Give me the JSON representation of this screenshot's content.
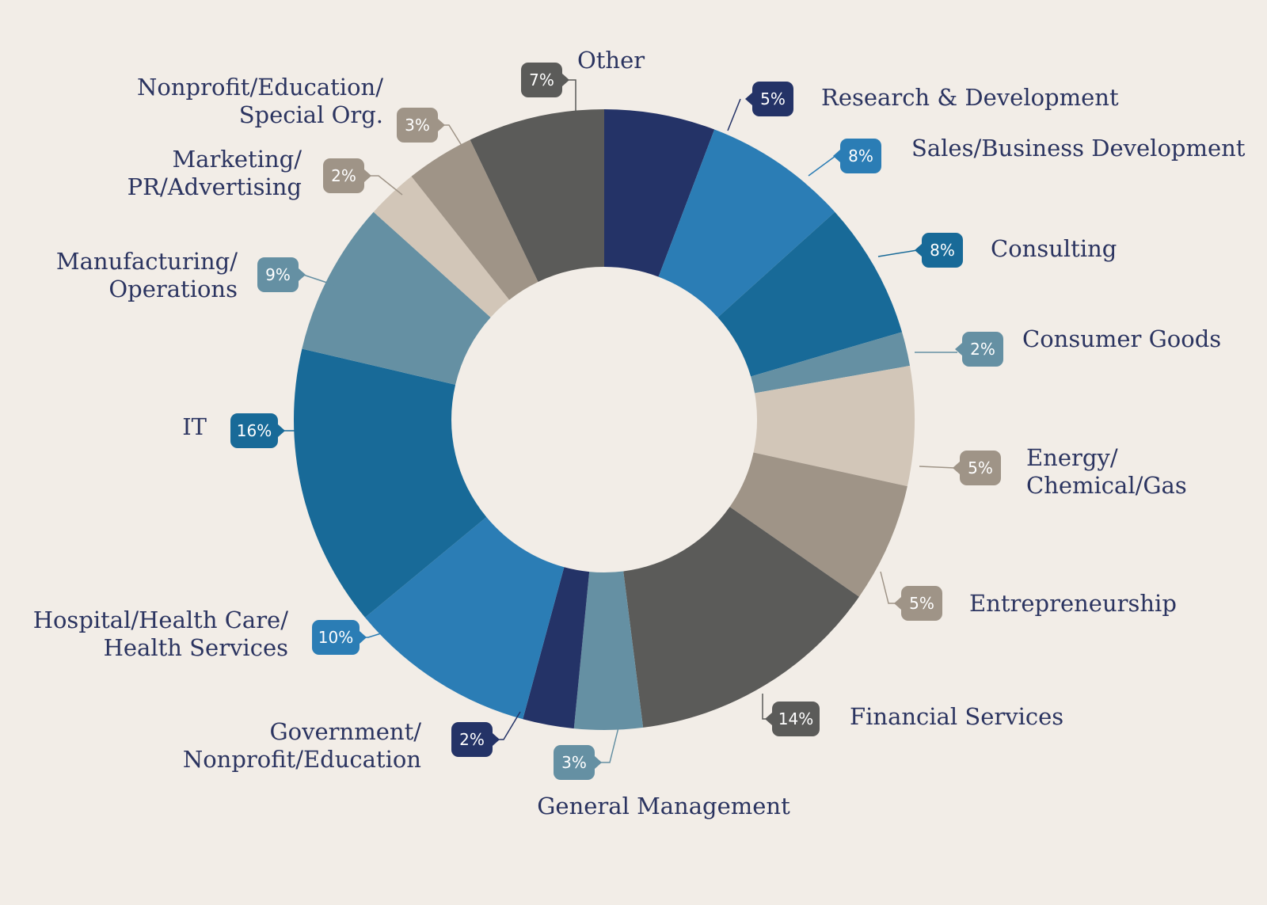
{
  "chart_data": {
    "type": "pie",
    "title": "",
    "categories": [
      "Research & Development",
      "Sales/Business Development",
      "Consulting",
      "Consumer Goods",
      "Energy/ Chemical/Gas",
      "Entrepreneurship",
      "Financial Services",
      "General Management",
      "Government/ Nonprofit/Education",
      "Hospital/Health Care/ Health Services",
      "IT",
      "Manufacturing/ Operations",
      "Marketing/ PR/Advertising",
      "Nonprofit/Education/ Special Org.",
      "Other"
    ],
    "values": [
      5,
      8,
      8,
      2,
      5,
      5,
      14,
      3,
      2,
      10,
      16,
      9,
      2,
      3,
      7
    ],
    "value_labels": [
      "5%",
      "8%",
      "8%",
      "2%",
      "5%",
      "5%",
      "14%",
      "3%",
      "2%",
      "10%",
      "16%",
      "9%",
      "2%",
      "3%",
      "7%"
    ],
    "colors": [
      "#243367",
      "#2b7db5",
      "#186a98",
      "#6590a3",
      "#d2c6b8",
      "#9f9487",
      "#5b5b59",
      "#6590a3",
      "#243367",
      "#2b7db5",
      "#186a98",
      "#6590a3",
      "#d2c6b8",
      "#9f9487",
      "#5b5b59"
    ],
    "badge_colors": [
      "#243367",
      "#2b7db5",
      "#186a98",
      "#6590a3",
      "#9f9487",
      "#9f9487",
      "#5b5b59",
      "#6590a3",
      "#243367",
      "#2b7db5",
      "#186a98",
      "#6590a3",
      "#9f9487",
      "#9f9487",
      "#5b5b59"
    ],
    "start": "12 o'clock",
    "direction": "clockwise",
    "legend": "none",
    "label_color": "#2b3460",
    "background": "#f2ede7"
  }
}
